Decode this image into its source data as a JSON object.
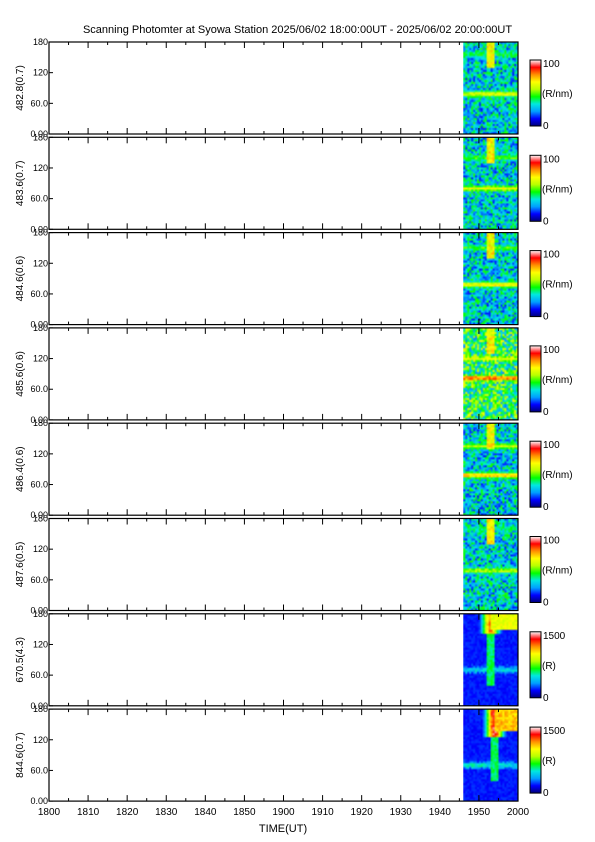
{
  "title": "Scanning Photomter at Syowa Station 2025/06/02 18:00:00UT - 2025/06/02 20:00:00UT",
  "xlabel": "TIME(UT)",
  "x_ticks": [
    "1800",
    "1810",
    "1820",
    "1830",
    "1840",
    "1850",
    "1900",
    "1910",
    "1920",
    "1930",
    "1940",
    "1950",
    "2000"
  ],
  "colormap_stops": [
    "#000078",
    "#0000ff",
    "#00a0ff",
    "#00e8e0",
    "#00ff00",
    "#b8ff00",
    "#ffff00",
    "#ff9000",
    "#ff0000",
    "#ffffff"
  ],
  "chart_data": {
    "type": "heatmap",
    "x_range_minutes": [
      0,
      120
    ],
    "data_start_minute": 106,
    "y_range": [
      0,
      180
    ],
    "y_ticks": [
      "0.00",
      "60.0",
      "120",
      "180"
    ],
    "panels": [
      {
        "label": "482.8(0.7)",
        "unit": "(R/nm)",
        "cmax": "100",
        "cmin": "0",
        "vmax": 100,
        "style": "noisy",
        "bands": [
          {
            "y": 78,
            "v": 0.55
          },
          {
            "y": 156,
            "v": 0.35
          }
        ],
        "plume": null
      },
      {
        "label": "483.6(0.7)",
        "unit": "(R/nm)",
        "cmax": "100",
        "cmin": "0",
        "vmax": 100,
        "style": "noisy",
        "bands": [
          {
            "y": 80,
            "v": 0.55
          },
          {
            "y": 140,
            "v": 0.4
          }
        ],
        "plume": null
      },
      {
        "label": "484.6(0.6)",
        "unit": "(R/nm)",
        "cmax": "100",
        "cmin": "0",
        "vmax": 100,
        "style": "noisy",
        "bands": [
          {
            "y": 78,
            "v": 0.6
          },
          {
            "y": 150,
            "v": 0.4
          }
        ],
        "plume": null
      },
      {
        "label": "485.6(0.6)",
        "unit": "(R/nm)",
        "cmax": "100",
        "cmin": "0",
        "vmax": 100,
        "style": "noisy-bright",
        "bands": [
          {
            "y": 82,
            "v": 0.75
          },
          {
            "y": 120,
            "v": 0.55
          }
        ],
        "plume": null
      },
      {
        "label": "486.4(0.6)",
        "unit": "(R/nm)",
        "cmax": "100",
        "cmin": "0",
        "vmax": 100,
        "style": "noisy",
        "bands": [
          {
            "y": 78,
            "v": 0.65
          },
          {
            "y": 135,
            "v": 0.5
          }
        ],
        "plume": null
      },
      {
        "label": "487.6(0.5)",
        "unit": "(R/nm)",
        "cmax": "100",
        "cmin": "0",
        "vmax": 100,
        "style": "noisy",
        "bands": [
          {
            "y": 78,
            "v": 0.5
          },
          {
            "y": 160,
            "v": 0.3
          }
        ],
        "plume": null
      },
      {
        "label": "670.5(4.3)",
        "unit": "(R)",
        "cmax": "1500",
        "cmin": "0",
        "vmax": 1500,
        "style": "smooth",
        "bands": [
          {
            "y": 70,
            "v": 0.22
          }
        ],
        "plume": {
          "x_min": 113,
          "y_min": 150,
          "v": 0.85
        }
      },
      {
        "label": "844.6(0.7)",
        "unit": "(R)",
        "cmax": "1500",
        "cmin": "0",
        "vmax": 1500,
        "style": "smooth",
        "bands": [
          {
            "y": 70,
            "v": 0.25
          }
        ],
        "plume": {
          "x_min": 114,
          "y_min": 135,
          "v": 0.98
        }
      }
    ]
  }
}
